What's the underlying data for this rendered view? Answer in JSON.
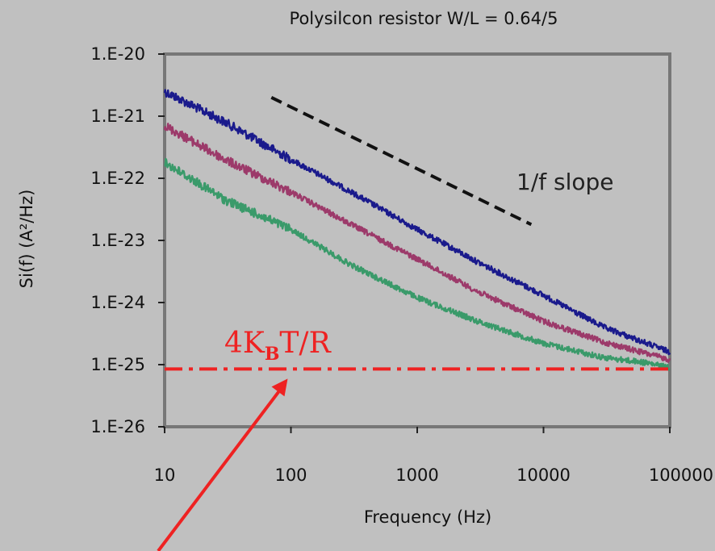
{
  "chart_data": {
    "type": "line",
    "title": "Polysilcon resistor W/L = 0.64/5",
    "xlabel": "Frequency (Hz)",
    "ylabel": "Si(f) (A²/Hz)",
    "x_scale": "log",
    "y_scale": "log",
    "xlim": [
      10,
      100000
    ],
    "ylim": [
      1e-26,
      1e-20
    ],
    "x_ticks": [
      "10",
      "100",
      "1000",
      "10000",
      "100000"
    ],
    "x_tick_values": [
      10,
      100,
      1000,
      10000,
      100000
    ],
    "y_ticks": [
      "1.E-20",
      "1.E-21",
      "1.E-22",
      "1.E-23",
      "1.E-24",
      "1.E-25",
      "1.E-26"
    ],
    "y_tick_values": [
      1e-20,
      1e-21,
      1e-22,
      1e-23,
      1e-24,
      1e-25,
      1e-26
    ],
    "grid": false,
    "legend": "none",
    "series": [
      {
        "color": "#1a1a8c",
        "x": [
          10,
          30,
          100,
          300,
          1000,
          3000,
          10000,
          30000,
          100000
        ],
        "y": [
          2.5e-21,
          8e-22,
          2e-22,
          6e-23,
          1.5e-23,
          4.5e-24,
          1.3e-24,
          4e-25,
          1.6e-25
        ]
      },
      {
        "color": "#9c3a6a",
        "x": [
          10,
          30,
          100,
          300,
          1000,
          3000,
          10000,
          30000,
          100000
        ],
        "y": [
          7e-22,
          2e-22,
          6e-23,
          1.8e-23,
          5e-24,
          1.5e-24,
          5e-25,
          2.3e-25,
          1.2e-25
        ]
      },
      {
        "color": "#3a9a6a",
        "x": [
          10,
          30,
          100,
          300,
          1000,
          3000,
          10000,
          30000,
          60000,
          100000
        ],
        "y": [
          1.8e-22,
          4.5e-23,
          1.5e-23,
          4e-24,
          1.2e-24,
          5e-25,
          2.2e-25,
          1.3e-25,
          1.1e-25,
          9e-26
        ]
      }
    ],
    "reference_lines": [
      {
        "label": "4K",
        "label_sub": "B",
        "label_tail": "T/R",
        "value": 8.5e-26,
        "style": "dash-dot",
        "color": "#ee2222"
      },
      {
        "label": "1/f slope",
        "style": "dashed",
        "color": "#111111",
        "x": [
          70,
          8000
        ],
        "y": [
          2e-21,
          1.8e-23
        ]
      }
    ],
    "annotations": [
      {
        "type": "arrow",
        "color": "#ee2222",
        "points_to": "4KBT/R",
        "target_x": 100,
        "target_y": 8.5e-26
      }
    ]
  }
}
